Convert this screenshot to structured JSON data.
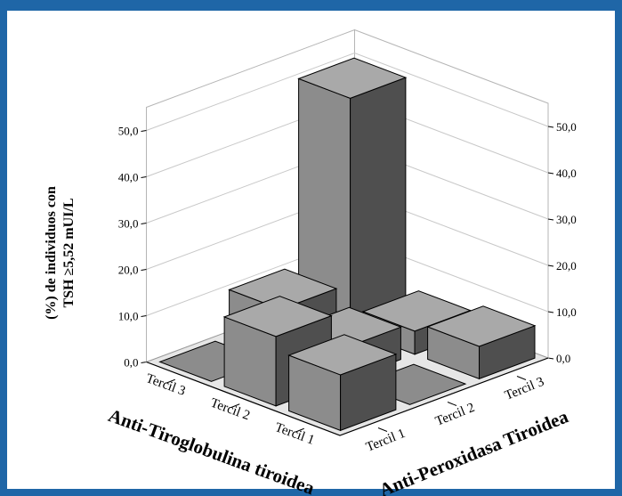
{
  "chart_data": {
    "type": "bar3d",
    "ylabel_lines": [
      "(%) de individuos con",
      "TSH ≥5,52 mUI/L"
    ],
    "x_axis_title": "Anti-Tiroglobulina tiroidea",
    "z_axis_title": "Anti-Peroxidasa Tiroidea",
    "x_categories": [
      "Tercil 3",
      "Tercil 2",
      "Tercil 1"
    ],
    "z_categories": [
      "Tercil 1",
      "Tercil 2",
      "Tercil 3"
    ],
    "y_ticks": [
      "0,0",
      "10,0",
      "20,0",
      "30,0",
      "40,0",
      "50,0"
    ],
    "ylim": [
      0,
      55
    ],
    "bars": [
      {
        "tg": "Tercil 3",
        "tpo": "Tercil 1",
        "value": 0
      },
      {
        "tg": "Tercil 3",
        "tpo": "Tercil 2",
        "value": 10
      },
      {
        "tg": "Tercil 3",
        "tpo": "Tercil 3",
        "value": 50
      },
      {
        "tg": "Tercil 2",
        "tpo": "Tercil 1",
        "value": 15
      },
      {
        "tg": "Tercil 2",
        "tpo": "Tercil 2",
        "value": 7
      },
      {
        "tg": "Tercil 2",
        "tpo": "Tercil 3",
        "value": 5
      },
      {
        "tg": "Tercil 1",
        "tpo": "Tercil 1",
        "value": 12
      },
      {
        "tg": "Tercil 1",
        "tpo": "Tercil 2",
        "value": 0
      },
      {
        "tg": "Tercil 1",
        "tpo": "Tercil 3",
        "value": 7
      }
    ],
    "colors": {
      "top": "#a9a9a9",
      "front": "#8c8c8c",
      "side": "#4f4f4f",
      "floor": "#e6e6e6"
    }
  }
}
